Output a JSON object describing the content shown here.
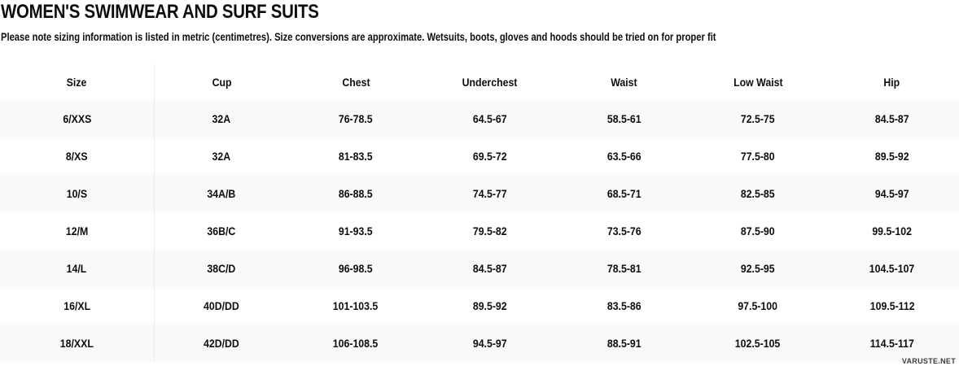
{
  "page": {
    "title": "WOMEN'S SWIMWEAR AND SURF SUITS",
    "subtitle": "Please note sizing information is listed in metric (centimetres). Size conversions are approximate. Wetsuits, boots, gloves and hoods should be tried on for proper fit"
  },
  "size_chart": {
    "columns": [
      "Size",
      "Cup",
      "Chest",
      "Underchest",
      "Waist",
      "Low Waist",
      "Hip"
    ],
    "rows": [
      {
        "size": "6/XXS",
        "cup": "32A",
        "chest": "76-78.5",
        "underchest": "64.5-67",
        "waist": "58.5-61",
        "low_waist": "72.5-75",
        "hip": "84.5-87"
      },
      {
        "size": "8/XS",
        "cup": "32A",
        "chest": "81-83.5",
        "underchest": "69.5-72",
        "waist": "63.5-66",
        "low_waist": "77.5-80",
        "hip": "89.5-92"
      },
      {
        "size": "10/S",
        "cup": "34A/B",
        "chest": "86-88.5",
        "underchest": "74.5-77",
        "waist": "68.5-71",
        "low_waist": "82.5-85",
        "hip": "94.5-97"
      },
      {
        "size": "12/M",
        "cup": "36B/C",
        "chest": "91-93.5",
        "underchest": "79.5-82",
        "waist": "73.5-76",
        "low_waist": "87.5-90",
        "hip": "99.5-102"
      },
      {
        "size": "14/L",
        "cup": "38C/D",
        "chest": "96-98.5",
        "underchest": "84.5-87",
        "waist": "78.5-81",
        "low_waist": "92.5-95",
        "hip": "104.5-107"
      },
      {
        "size": "16/XL",
        "cup": "40D/DD",
        "chest": "101-103.5",
        "underchest": "89.5-92",
        "waist": "83.5-86",
        "low_waist": "97.5-100",
        "hip": "109.5-112"
      },
      {
        "size": "18/XXL",
        "cup": "42D/DD",
        "chest": "106-108.5",
        "underchest": "94.5-97",
        "waist": "88.5-91",
        "low_waist": "102.5-105",
        "hip": "114.5-117"
      }
    ]
  },
  "watermark": {
    "label": "VARUSTE.NET"
  },
  "colors": {
    "background": "#ffffff",
    "stripe": "#faf8f9",
    "divider": "#eeebed",
    "text": "#0d0d0d"
  }
}
